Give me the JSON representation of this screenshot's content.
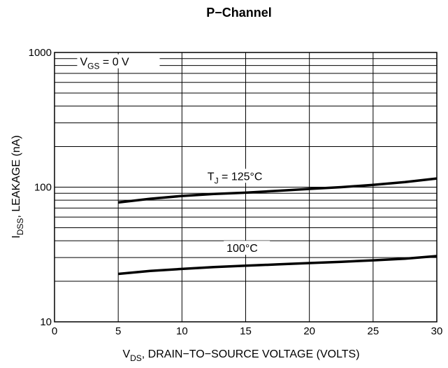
{
  "chart_data": {
    "type": "line",
    "title": "P−Channel",
    "xlabel": {
      "prefix": "V",
      "sub": "DS",
      "rest": ", DRAIN−TO−SOURCE VOLTAGE (VOLTS)"
    },
    "ylabel": {
      "prefix": "I",
      "sub": "DSS",
      "rest": ", LEAKAGE (nA)"
    },
    "xlim": [
      0,
      30
    ],
    "ylim": [
      10,
      1000
    ],
    "y_scale": "log",
    "grid": true,
    "x_ticks": [
      0,
      5,
      10,
      15,
      20,
      25,
      30
    ],
    "y_ticks": [
      10,
      100,
      1000
    ],
    "annotations": [
      {
        "prefix": "V",
        "sub": "GS",
        "rest": " = 0 V"
      },
      {
        "prefix": "T",
        "sub": "J",
        "rest": " = 125°C"
      },
      {
        "prefix": "",
        "sub": "",
        "rest": "100°C"
      }
    ],
    "series": [
      {
        "name": "T_J = 125°C",
        "x": [
          5,
          7.5,
          10,
          12.5,
          15,
          17.5,
          20,
          22.5,
          25,
          27.5,
          30
        ],
        "y": [
          77,
          82,
          86,
          89,
          91,
          94,
          97,
          100,
          104,
          109,
          116
        ]
      },
      {
        "name": "100°C",
        "x": [
          5,
          7.5,
          10,
          12.5,
          15,
          17.5,
          20,
          22.5,
          25,
          27.5,
          30
        ],
        "y": [
          22.7,
          23.9,
          24.7,
          25.5,
          26.1,
          26.7,
          27.3,
          27.9,
          28.6,
          29.4,
          30.8
        ]
      }
    ]
  }
}
